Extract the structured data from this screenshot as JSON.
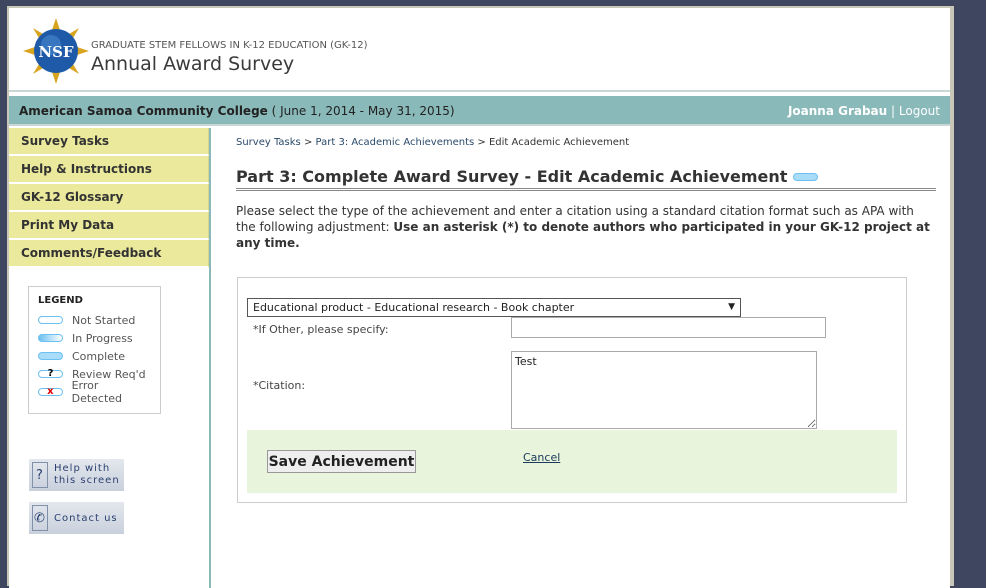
{
  "header": {
    "logo_text": "NSF",
    "subtitle": "GRADUATE STEM FELLOWS IN K-12 EDUCATION (GK-12)",
    "title": "Annual Award Survey"
  },
  "bar": {
    "institution": "American Samoa Community College",
    "period": "( June 1, 2014 - May 31, 2015)",
    "user": "Joanna Grabau",
    "separator": "|",
    "logout": "Logout"
  },
  "sidebar": {
    "items": [
      {
        "label": "Survey Tasks"
      },
      {
        "label": "Help & Instructions"
      },
      {
        "label": "GK-12 Glossary"
      },
      {
        "label": "Print My Data"
      },
      {
        "label": "Comments/Feedback"
      }
    ],
    "legend": {
      "title": "LEGEND",
      "items": [
        {
          "label": "Not Started"
        },
        {
          "label": "In Progress"
        },
        {
          "label": "Complete"
        },
        {
          "label": "Review Req'd",
          "mark": "?"
        },
        {
          "label": "Error Detected",
          "mark": "x"
        }
      ]
    },
    "help_button": {
      "line1": "Help with",
      "line2": "this screen",
      "icon": "?"
    },
    "contact_button": {
      "label": "Contact us"
    }
  },
  "breadcrumb": {
    "items": [
      "Survey Tasks",
      "Part 3: Academic Achievements",
      "Edit Academic Achievement"
    ],
    "separator": ">"
  },
  "main": {
    "title": "Part 3: Complete Award Survey - Edit Academic Achievement",
    "intro": "Please select the type of the achievement and enter a citation using a standard citation format such as APA with the following adjustment: ",
    "intro_bold": "Use an asterisk (*) to denote authors who participated in your GK-12 project at any time.",
    "type_select": "Educational product - Educational research - Book chapter",
    "other_label": "*If Other, please specify:",
    "other_value": "",
    "citation_label": "*Citation:",
    "citation_value": "Test",
    "save": "Save Achievement",
    "cancel": "Cancel"
  },
  "colors": {
    "teal_bar": "#8ab9b9",
    "nav": "#ebe99b",
    "actions_bg": "#e9f4dc",
    "frame": "#3f465f"
  }
}
